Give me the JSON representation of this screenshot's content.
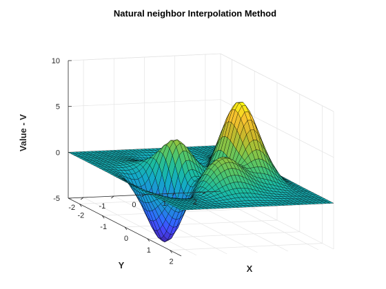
{
  "chart_data": {
    "type": "surface3d",
    "title": "Natural neighbor Interpolation Method",
    "xlabel": "X",
    "ylabel": "Y",
    "zlabel": "Value - V",
    "xlim": [
      -2.5,
      2.5
    ],
    "ylim": [
      -2.5,
      2.5
    ],
    "zlim": [
      -5,
      10
    ],
    "xticks": [
      -2,
      -1,
      0,
      1,
      2
    ],
    "yticks": [
      -2,
      -1,
      0,
      1,
      2
    ],
    "zticks": [
      -5,
      0,
      5,
      10
    ],
    "xtick_labels": [
      "-2",
      "-1",
      "0",
      "1",
      "2"
    ],
    "ytick_labels": [
      "-2",
      "-1",
      "0",
      "1",
      "2"
    ],
    "ztick_labels": [
      "-5",
      "0",
      "5",
      "10"
    ],
    "grid": true,
    "colormap": "parula",
    "edge_color": "#000000",
    "function": "peaks",
    "surface": {
      "x_range": [
        -2.5,
        2.5
      ],
      "y_range": [
        -2.5,
        2.5
      ],
      "z_min": -6.5,
      "z_max": 8.1
    }
  },
  "colors": {
    "parula": [
      "#3e26a8",
      "#4743f7",
      "#2f6bff",
      "#1f8ed8",
      "#13a9c9",
      "#1cbba1",
      "#4fc56c",
      "#97c33b",
      "#d1b72a",
      "#f9c32f",
      "#f9fb0e"
    ],
    "axis": "#262626",
    "grid": "#e3e3e3"
  }
}
